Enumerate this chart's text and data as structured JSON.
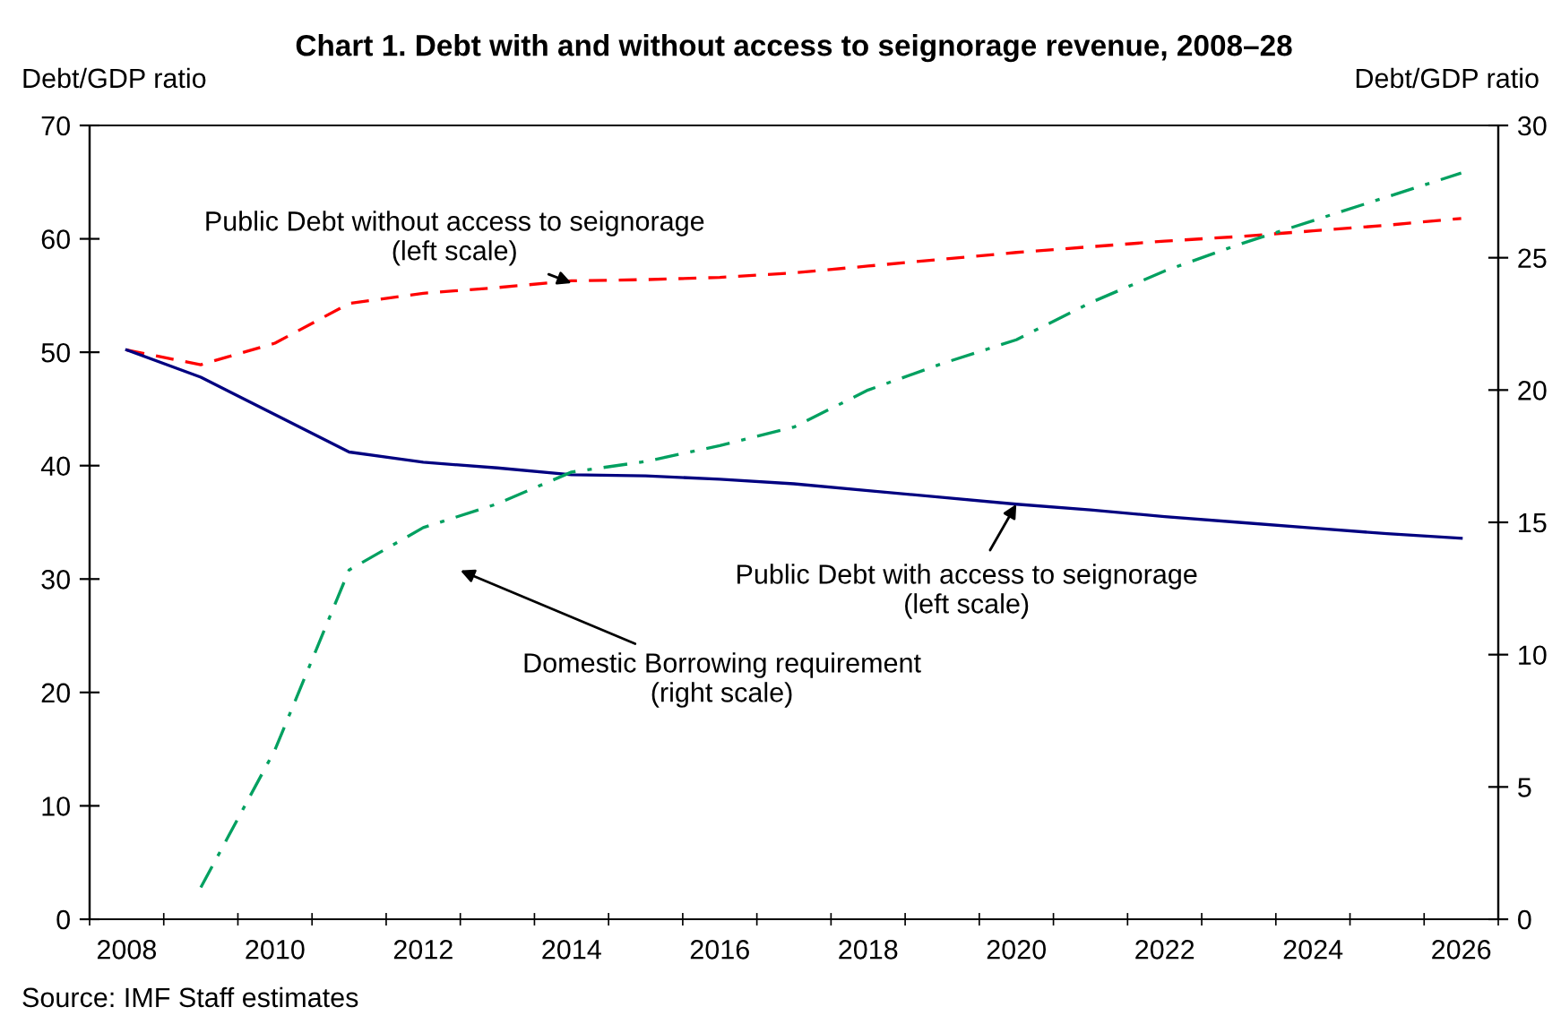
{
  "chart_data": {
    "type": "line",
    "title": "Chart 1. Debt with and without access to seignorage revenue, 2008–28",
    "ylabel": "Debt/GDP ratio",
    "y2label": "Debt/GDP ratio",
    "categories": [
      "2008",
      null,
      "2010",
      null,
      "2012",
      null,
      "2014",
      null,
      "2016",
      null,
      "2018",
      null,
      "2020",
      null,
      "2022",
      null,
      "2024",
      null,
      "2026"
    ],
    "series": [
      {
        "color": "#ff0000",
        "line_style": "dashed",
        "values": [
          50.2,
          48.9,
          50.8,
          54.3,
          55.2,
          55.7,
          56.3,
          56.4,
          56.6,
          57.0,
          57.6,
          58.2,
          58.8,
          59.3,
          59.8,
          60.2,
          60.7,
          61.2,
          61.8
        ]
      },
      {
        "color": "#000080",
        "line_style": "solid",
        "values": [
          50.2,
          47.8,
          44.5,
          41.2,
          40.3,
          39.8,
          39.2,
          39.1,
          38.8,
          38.4,
          37.8,
          37.2,
          36.6,
          36.1,
          35.5,
          35.0,
          34.5,
          34.0,
          33.6
        ]
      },
      {
        "color": "#00a060",
        "line_style": "dashdot",
        "axis": "y2",
        "values": [
          null,
          1.2,
          6.4,
          13.2,
          14.8,
          15.7,
          16.9,
          17.3,
          17.9,
          18.6,
          20.0,
          21.0,
          21.9,
          23.3,
          24.5,
          25.5,
          26.4,
          27.3,
          28.2
        ]
      }
    ],
    "ylim": [
      0,
      70
    ],
    "yticks": [
      0,
      10,
      20,
      30,
      40,
      50,
      60,
      70
    ],
    "y2lim": [
      0,
      30
    ],
    "y2ticks": [
      0,
      5,
      10,
      15,
      20,
      25,
      30
    ],
    "grid": false,
    "legend": false,
    "annotations": [
      {
        "text": "Public Debt without access to seignorage\n(left scale)",
        "x": "2014",
        "y": 56.1
      },
      {
        "text": "Public Debt with access to seignorage\n(left scale)",
        "x": "2020",
        "y": 36.6
      },
      "Domestic Borrowing requirement\n(right scale)",
      "Source: IMF Staff estimates"
    ]
  }
}
